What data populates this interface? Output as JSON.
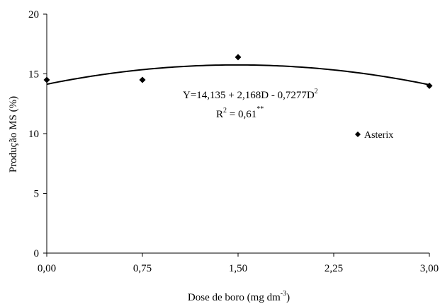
{
  "chart_data": {
    "type": "scatter",
    "title": "",
    "xlabel": {
      "main": "Dose de boro (mg dm",
      "superscript": "-3",
      "close": ")"
    },
    "ylabel": "Produção MS (%)",
    "xlim": [
      0,
      3
    ],
    "ylim": [
      0,
      20
    ],
    "x_ticks": [
      0,
      0.75,
      1.5,
      2.25,
      3
    ],
    "x_tick_labels": [
      "0,00",
      "0,75",
      "1,50",
      "2,25",
      "3,00"
    ],
    "y_ticks": [
      0,
      5,
      10,
      15,
      20
    ],
    "y_tick_labels": [
      "0",
      "5",
      "10",
      "15",
      "20"
    ],
    "grid": false,
    "legend_position": "inside-right",
    "series": [
      {
        "name": "Asterix",
        "marker": "diamond",
        "color": "#000000",
        "x": [
          0,
          0.75,
          1.5,
          3
        ],
        "y": [
          14.5,
          14.5,
          16.4,
          14.0
        ]
      }
    ],
    "fit": {
      "type": "quadratic",
      "coefficients": [
        14.135,
        2.168,
        -0.7277
      ],
      "color": "#000000"
    },
    "annotations": {
      "equation": {
        "main": "Y=14,135 + 2,168D - 0,7277D",
        "superscript": "2"
      },
      "r_squared": {
        "main": "R",
        "superscript": "2",
        "value": " = 0,61",
        "significance": "**"
      }
    }
  }
}
